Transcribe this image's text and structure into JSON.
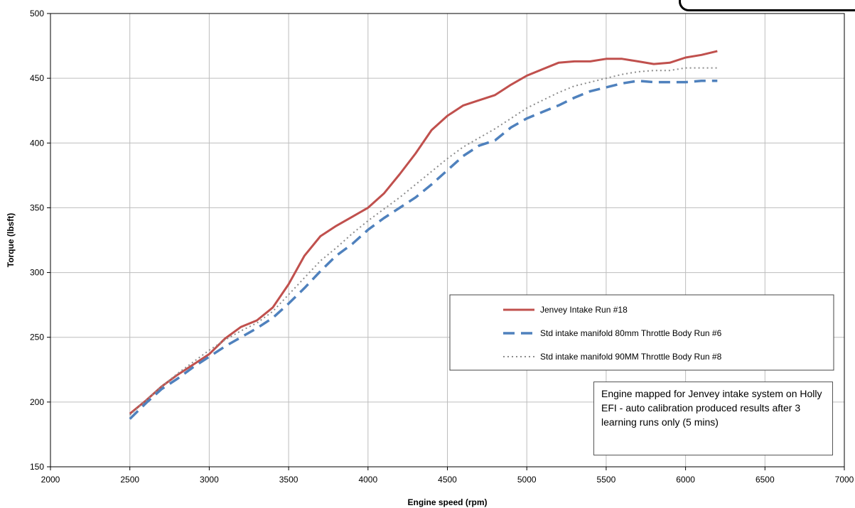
{
  "chart_data": {
    "type": "line",
    "xlabel": "Engine speed (rpm)",
    "ylabel": "Torque (lbsft)",
    "xlim": [
      2000,
      7000
    ],
    "ylim": [
      150,
      500
    ],
    "xticks": [
      "2000",
      "2500",
      "3000",
      "3500",
      "4000",
      "4500",
      "5000",
      "5500",
      "6000",
      "6500",
      "7000"
    ],
    "yticks": [
      "150",
      "200",
      "250",
      "300",
      "350",
      "400",
      "450",
      "500"
    ],
    "grid": true,
    "legend_position": "bottom-right",
    "series": [
      {
        "name": "Jenvey Intake Run #18",
        "color": "#c0504d",
        "style": "solid",
        "x": [
          2500,
          2600,
          2700,
          2800,
          2900,
          3000,
          3100,
          3200,
          3300,
          3400,
          3500,
          3600,
          3700,
          3800,
          3900,
          4000,
          4100,
          4200,
          4300,
          4400,
          4500,
          4600,
          4700,
          4800,
          4900,
          5000,
          5100,
          5200,
          5300,
          5400,
          5500,
          5600,
          5700,
          5800,
          5900,
          6000,
          6100,
          6200
        ],
        "y": [
          191,
          201,
          212,
          221,
          229,
          237,
          249,
          258,
          263,
          273,
          291,
          313,
          328,
          336,
          343,
          350,
          361,
          376,
          392,
          410,
          421,
          429,
          433,
          437,
          445,
          452,
          457,
          462,
          463,
          463,
          465,
          465,
          463,
          461,
          462,
          466,
          468,
          471
        ]
      },
      {
        "name": "Std intake manifold 80mm Throttle Body Run #6",
        "color": "#4f81bd",
        "style": "dashed",
        "x": [
          2500,
          2600,
          2700,
          2800,
          2900,
          3000,
          3100,
          3200,
          3300,
          3400,
          3500,
          3600,
          3700,
          3800,
          3900,
          4000,
          4100,
          4200,
          4300,
          4400,
          4500,
          4600,
          4700,
          4800,
          4900,
          5000,
          5100,
          5200,
          5300,
          5400,
          5500,
          5600,
          5700,
          5800,
          5900,
          6000,
          6100,
          6200
        ],
        "y": [
          187,
          199,
          210,
          218,
          227,
          235,
          243,
          250,
          257,
          265,
          276,
          288,
          301,
          313,
          322,
          333,
          342,
          350,
          358,
          368,
          379,
          390,
          398,
          402,
          412,
          419,
          424,
          429,
          435,
          440,
          443,
          446,
          448,
          447,
          447,
          447,
          448,
          448
        ]
      },
      {
        "name": "Std intake manifold 90MM Throttle Body Run #8",
        "color": "#8c8c8c",
        "style": "dotted",
        "x": [
          2500,
          2600,
          2700,
          2800,
          2900,
          3000,
          3100,
          3200,
          3300,
          3400,
          3500,
          3600,
          3700,
          3800,
          3900,
          4000,
          4100,
          4200,
          4300,
          4400,
          4500,
          4600,
          4700,
          4800,
          4900,
          5000,
          5100,
          5200,
          5300,
          5400,
          5500,
          5600,
          5700,
          5800,
          5900,
          6000,
          6100,
          6200
        ],
        "y": [
          190,
          201,
          212,
          222,
          231,
          240,
          248,
          255,
          261,
          270,
          283,
          296,
          309,
          319,
          330,
          340,
          349,
          358,
          368,
          378,
          388,
          397,
          404,
          411,
          419,
          427,
          433,
          439,
          444,
          447,
          450,
          453,
          455,
          456,
          456,
          458,
          458,
          458
        ]
      }
    ]
  },
  "note": "Engine mapped for Jenvey intake system on Holly EFI - auto calibration produced results after 3 learning runs only (5 mins)"
}
